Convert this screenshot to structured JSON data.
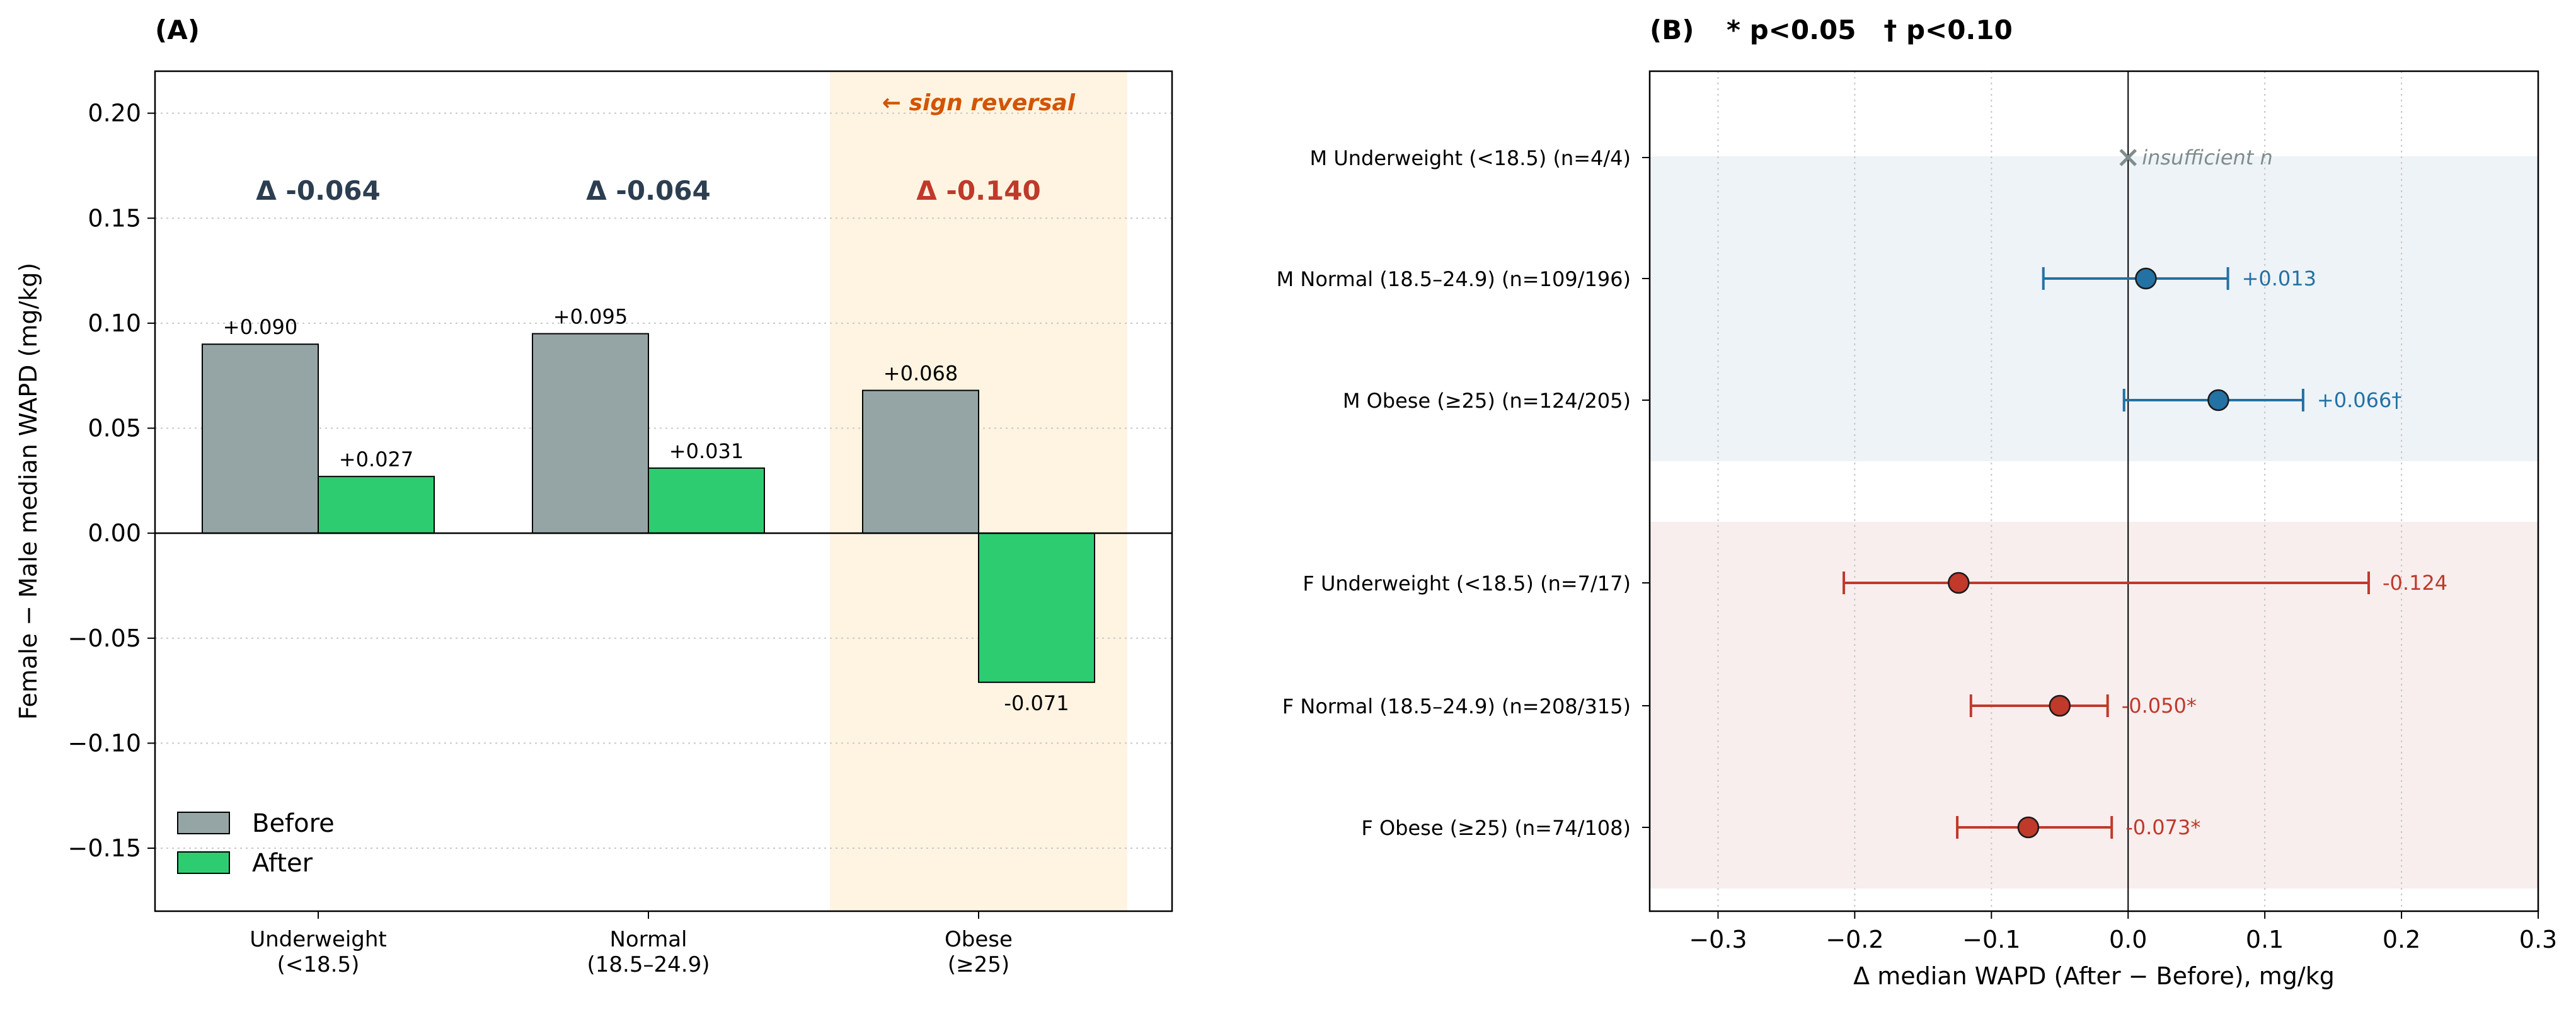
{
  "chart_data": [
    {
      "type": "bar",
      "panel_label": "(A)",
      "categories": [
        [
          "Underweight",
          "(<18.5)"
        ],
        [
          "Normal",
          "(18.5–24.9)"
        ],
        [
          "Obese",
          "(≥25)"
        ]
      ],
      "series": [
        {
          "name": "Before",
          "values": [
            0.09,
            0.095,
            0.068
          ],
          "labels": [
            "+0.090",
            "+0.095",
            "+0.068"
          ],
          "color": "#95a5a6"
        },
        {
          "name": "After",
          "values": [
            0.027,
            0.031,
            -0.071
          ],
          "labels": [
            "+0.027",
            "+0.031",
            "-0.071"
          ],
          "color": "#2ecc71"
        }
      ],
      "delta_labels": [
        "Δ -0.064",
        "Δ -0.064",
        "Δ -0.140"
      ],
      "delta_colors": [
        "#2c3e50",
        "#2c3e50",
        "#c0392b"
      ],
      "highlight_category": 2,
      "highlight_color": "#fdebc8",
      "annotation": {
        "text": "← sign reversal",
        "color": "#d35400",
        "y": 0.205
      },
      "delta_label_y": 0.163,
      "xlabel": "",
      "ylabel": "Female − Male median WAPD (mg/kg)",
      "ylim": [
        -0.18,
        0.22
      ],
      "yticks": [
        -0.15,
        -0.1,
        -0.05,
        0.0,
        0.05,
        0.1,
        0.15,
        0.2
      ],
      "ytick_labels": [
        "−0.15",
        "−0.10",
        "−0.05",
        "0.00",
        "0.05",
        "0.10",
        "0.15",
        "0.20"
      ],
      "grid": "horizontal dotted",
      "legend": "lower-left"
    },
    {
      "type": "scatter",
      "subtype": "forest",
      "panel_label": "(B)",
      "title": "* p<0.05   † p<0.10",
      "rows": [
        {
          "label": "M Underweight (<18.5)  (n=4/4)",
          "estimate": 0.0,
          "ci": null,
          "value_label": "insufficient n",
          "group": "M",
          "insufficient": true
        },
        {
          "label": "M Normal (18.5–24.9)  (n=109/196)",
          "estimate": 0.013,
          "ci": [
            -0.062,
            0.073
          ],
          "value_label": "+0.013",
          "group": "M"
        },
        {
          "label": "M Obese (≥25)  (n=124/205)",
          "estimate": 0.066,
          "ci": [
            -0.003,
            0.128
          ],
          "value_label": "+0.066†",
          "group": "M"
        },
        {
          "label": "F Underweight (<18.5)  (n=7/17)",
          "estimate": -0.124,
          "ci": [
            -0.208,
            0.176
          ],
          "value_label": "-0.124",
          "group": "F"
        },
        {
          "label": "F Normal (18.5–24.9)  (n=208/315)",
          "estimate": -0.05,
          "ci": [
            -0.115,
            -0.015
          ],
          "value_label": "-0.050*",
          "group": "F"
        },
        {
          "label": "F Obese (≥25)  (n=74/108)",
          "estimate": -0.073,
          "ci": [
            -0.125,
            -0.012
          ],
          "value_label": "-0.073*",
          "group": "F"
        }
      ],
      "group_colors": {
        "M": "#2471a3",
        "F": "#c0392b",
        "insufficient": "#7f8c8d"
      },
      "group_band_colors": {
        "M": "#eef3f7",
        "F": "#f8eeee"
      },
      "xlabel": "Δ median WAPD (After − Before), mg/kg",
      "xlim": [
        -0.35,
        0.3
      ],
      "xticks": [
        -0.3,
        -0.2,
        -0.1,
        0.0,
        0.1,
        0.2,
        0.3
      ],
      "xtick_labels": [
        "−0.3",
        "−0.2",
        "−0.1",
        "0.0",
        "0.1",
        "0.2",
        "0.3"
      ],
      "grid": "vertical dotted"
    }
  ]
}
